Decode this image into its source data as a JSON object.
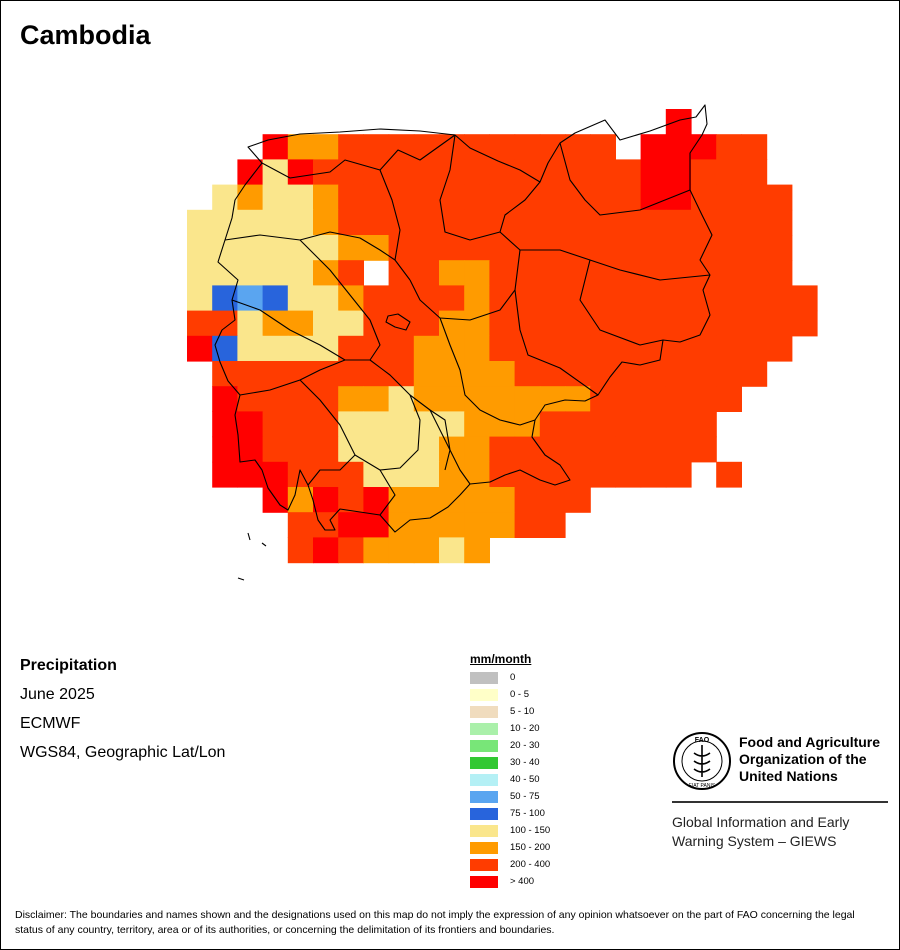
{
  "title": "Cambodia",
  "info": {
    "variable": "Precipitation",
    "period": "June 2025",
    "source": "ECMWF",
    "projection": "WGS84, Geographic Lat/Lon"
  },
  "legend": {
    "unit": "mm/month",
    "classes": [
      {
        "label": "0",
        "color": "#c0c0c0"
      },
      {
        "label": "0 - 5",
        "color": "#ffffc8"
      },
      {
        "label": "5 - 10",
        "color": "#f0dcbe"
      },
      {
        "label": "10 - 20",
        "color": "#aaf0aa"
      },
      {
        "label": "20 - 30",
        "color": "#78e678"
      },
      {
        "label": "30 - 40",
        "color": "#32c832"
      },
      {
        "label": "40 - 50",
        "color": "#b4f0f5"
      },
      {
        "label": "50 - 75",
        "color": "#5aa5f0"
      },
      {
        "label": "75 - 100",
        "color": "#2864dc"
      },
      {
        "label": "100 - 150",
        "color": "#fae68c"
      },
      {
        "label": "150 - 200",
        "color": "#ff9b00"
      },
      {
        "label": "200 - 400",
        "color": "#ff3c00"
      },
      {
        "label": "> 400",
        "color": "#ff0000"
      }
    ]
  },
  "organization": {
    "name_lines": [
      "Food and Agriculture",
      "Organization of the",
      "United Nations"
    ],
    "logo_text": "FAO",
    "logo_motto": "FIAT PANIS",
    "program_lines": [
      "Global Information and Early",
      "Warning System – GIEWS"
    ]
  },
  "disclaimer": "Disclaimer: The boundaries and names shown and the designations used on this map do not imply the expression of any opinion whatsoever on the part of FAO concerning the legal status of any country, territory, area or of its authorities, or concerning the delimitation of its frontiers and boundaries.",
  "raster": {
    "legend_class_codes": {
      "L": "100 - 150",
      "O": "150 - 200",
      "R": "200 - 400",
      "X": "> 400",
      "M": "50 - 75",
      "B": "75 - 100"
    },
    "rows": [
      "...................X......",
      "...XOORRRRRRRRRRR.XXXRR...",
      "..XLXRRRRRRRRRRRRRXXRRR...",
      ".LOLLORRRRRRRRRRRRXXRRRR..",
      "LLLLLORRRRRRRRRRRRRRRRRR..",
      "LLLLLLOORRRRRRRRRRRRRRRR..",
      "LLLLLOR.RROORRRRRRRRRRRR..",
      "LBMBLLORRRRORRRRRRRRRRRRR.",
      "RRLOOLLRRROORRRRRRRRRRRRR.",
      "XBLLLLRRROOORRRRRRRRRRRR..",
      ".RRRRRRRROOOORRRRRRRRRR...",
      ".XRRRROOLOOOOOOORRRRRR....",
      ".XXRRRLLLLLOOORRRRRRR.....",
      ".XXRRRLLLLOORRRRRRRRR.....",
      ".XXXRRRLLLOORRRRRRRR.R....",
      "...XOXRXOOOOORRR..........",
      "....RRXXOOOOORR...........",
      "....RXROOOLO.............."
    ]
  }
}
